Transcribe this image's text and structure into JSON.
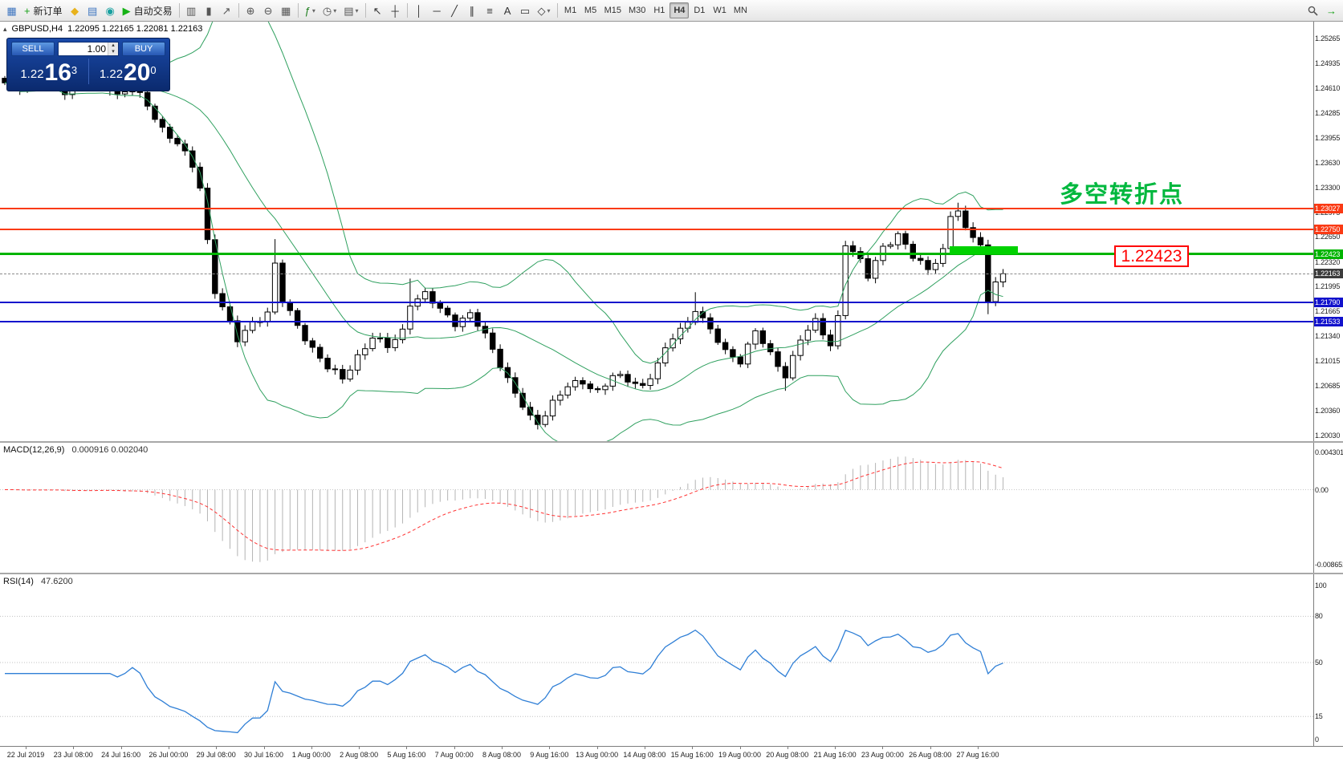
{
  "toolbar": {
    "left": [
      {
        "name": "chart-window-icon",
        "glyph": "▦",
        "color": "#3f76c0"
      },
      {
        "name": "new-order-button",
        "icon": "new-order-icon",
        "glyph": "+",
        "color": "#18a018",
        "label": "新订单"
      },
      {
        "name": "favorites-icon",
        "glyph": "◆",
        "color": "#e8b21c"
      },
      {
        "name": "profiles-icon",
        "glyph": "▤",
        "color": "#3f76c0"
      },
      {
        "name": "community-icon",
        "glyph": "◉",
        "color": "#18a0a0"
      },
      {
        "name": "autotrade-button",
        "icon": "autotrade-play-icon",
        "glyph": "▶",
        "color": "#15b215",
        "label": "自动交易"
      },
      {
        "type": "sep"
      },
      {
        "name": "bar-chart-icon",
        "glyph": "▥",
        "color": "#555555"
      },
      {
        "name": "candlestick-icon",
        "glyph": "▮",
        "color": "#555555"
      },
      {
        "name": "line-chart-icon",
        "glyph": "↗",
        "color": "#555555"
      },
      {
        "type": "sep"
      },
      {
        "name": "zoom-in-icon",
        "glyph": "⊕",
        "color": "#555555"
      },
      {
        "name": "zoom-out-icon",
        "glyph": "⊖",
        "color": "#555555"
      },
      {
        "name": "tile-windows-icon",
        "glyph": "▦",
        "color": "#555555"
      },
      {
        "type": "sep"
      },
      {
        "name": "indicators-icon",
        "glyph": "ƒ",
        "color": "#1d7d1d",
        "dropdown": true
      },
      {
        "name": "periods-icon",
        "glyph": "◷",
        "color": "#555555",
        "dropdown": true
      },
      {
        "name": "templates-icon",
        "glyph": "▤",
        "color": "#555555",
        "dropdown": true
      },
      {
        "type": "sep"
      },
      {
        "name": "cursor-icon",
        "glyph": "↖",
        "color": "#333333"
      },
      {
        "name": "crosshair-icon",
        "glyph": "┼",
        "color": "#333333"
      },
      {
        "type": "sep"
      },
      {
        "name": "vline-icon",
        "glyph": "│",
        "color": "#333333"
      },
      {
        "name": "hline-icon",
        "glyph": "─",
        "color": "#333333"
      },
      {
        "name": "trendline-icon",
        "glyph": "╱",
        "color": "#333333"
      },
      {
        "name": "channel-icon",
        "glyph": "∥",
        "color": "#333333"
      },
      {
        "name": "fibonacci-icon",
        "glyph": "≡",
        "color": "#333333"
      },
      {
        "name": "text-icon",
        "glyph": "A",
        "color": "#333333"
      },
      {
        "name": "label-icon",
        "glyph": "▭",
        "color": "#333333"
      },
      {
        "name": "shapes-icon",
        "glyph": "◇",
        "color": "#333333",
        "dropdown": true
      },
      {
        "type": "sep"
      }
    ],
    "timeframes": [
      "M1",
      "M5",
      "M15",
      "M30",
      "H1",
      "H4",
      "D1",
      "W1",
      "MN"
    ],
    "active_timeframe": "H4",
    "right": [
      {
        "name": "search-icon",
        "svg": "magnifier"
      },
      {
        "name": "forward-icon",
        "glyph": "→",
        "color": "#15a015"
      }
    ]
  },
  "chart": {
    "symbol": "GBPUSD,H4",
    "ohlc": "1.22095 1.22165 1.22081 1.22163"
  },
  "one_click": {
    "sell_label": "SELL",
    "buy_label": "BUY",
    "volume": "1.00",
    "sell_price_prefix": "1.22",
    "sell_price_big": "16",
    "sell_price_sup": "3",
    "buy_price_prefix": "1.22",
    "buy_price_big": "20",
    "buy_price_sup": "0"
  },
  "price_axis": {
    "labels": [
      "1.25265",
      "1.24935",
      "1.24610",
      "1.24285",
      "1.23955",
      "1.23630",
      "1.23300",
      "1.22975",
      "1.22650",
      "1.22320",
      "1.21995",
      "1.21665",
      "1.21340",
      "1.21015",
      "1.20685",
      "1.20360",
      "1.20030"
    ]
  },
  "hlines": [
    {
      "label": "1.23027",
      "price": 1.23027,
      "color": "#fa3a14",
      "width": 2
    },
    {
      "label": "1.22750",
      "price": 1.2275,
      "color": "#fa3a14",
      "width": 2
    },
    {
      "label": "1.22423",
      "price": 1.22423,
      "color": "#00b400",
      "width": 3
    },
    {
      "label": "1.21790",
      "price": 1.2179,
      "color": "#1212cc",
      "width": 2
    },
    {
      "label": "1.21533",
      "price": 1.21533,
      "color": "#1212cc",
      "width": 2
    }
  ],
  "current_price": {
    "label": "1.22163",
    "price": 1.22163,
    "tag_bg": "#3c3c3c"
  },
  "annotations": {
    "turning_point": "多空转折点",
    "turning_point_color": "#00b83e",
    "price_box": "1.22423"
  },
  "zone": {
    "price_top": 1.2253,
    "price_bottom": 1.22423,
    "color": "#00d200"
  },
  "macd": {
    "name": "MACD(12,26,9)",
    "values": "0.000916 0.002040",
    "axis_labels": [
      "0.004301",
      "0.00",
      "-0.008651"
    ],
    "axis_values": [
      0.004301,
      0,
      -0.008651
    ],
    "hist_color": "#b4b4b4",
    "signal_color": "#ff3333"
  },
  "rsi": {
    "name": "RSI(14)",
    "value": "47.6200",
    "axis_labels": [
      "100",
      "80",
      "50",
      "15",
      "0"
    ],
    "axis_values": [
      100,
      80,
      50,
      15,
      0
    ],
    "levels": [
      80,
      50,
      15
    ],
    "line_color": "#2f7fd6"
  },
  "date_axis": [
    "22 Jul 2019",
    "23 Jul 08:00",
    "24 Jul 16:00",
    "26 Jul 00:00",
    "29 Jul 08:00",
    "30 Jul 16:00",
    "1 Aug 00:00",
    "2 Aug 08:00",
    "5 Aug 16:00",
    "7 Aug 00:00",
    "8 Aug 08:00",
    "9 Aug 16:00",
    "13 Aug 00:00",
    "14 Aug 08:00",
    "15 Aug 16:00",
    "19 Aug 00:00",
    "20 Aug 08:00",
    "21 Aug 16:00",
    "23 Aug 00:00",
    "26 Aug 08:00",
    "27 Aug 16:00"
  ],
  "chart_data": {
    "type": "candlestick",
    "symbol": "GBPUSD",
    "timeframe": "H4",
    "candle_count": 134,
    "price_range": [
      1.2003,
      1.25265
    ],
    "band_color": "#2fa05f",
    "close_anchors": [
      [
        0,
        1.2468
      ],
      [
        3,
        1.2462
      ],
      [
        5,
        1.2471
      ],
      [
        8,
        1.2458
      ],
      [
        11,
        1.2465
      ],
      [
        13,
        1.2472
      ],
      [
        15,
        1.2452
      ],
      [
        17,
        1.2462
      ],
      [
        19,
        1.2438
      ],
      [
        21,
        1.2408
      ],
      [
        23,
        1.2388
      ],
      [
        25,
        1.2358
      ],
      [
        26,
        1.233
      ],
      [
        27,
        1.226
      ],
      [
        28,
        1.2195
      ],
      [
        30,
        1.215
      ],
      [
        31,
        1.2128
      ],
      [
        33,
        1.2152
      ],
      [
        35,
        1.2165
      ],
      [
        36,
        1.2228
      ],
      [
        37,
        1.218
      ],
      [
        39,
        1.2148
      ],
      [
        41,
        1.2118
      ],
      [
        43,
        1.2092
      ],
      [
        45,
        1.2078
      ],
      [
        47,
        1.2108
      ],
      [
        49,
        1.2132
      ],
      [
        51,
        1.212
      ],
      [
        53,
        1.2142
      ],
      [
        54,
        1.2178
      ],
      [
        56,
        1.2188
      ],
      [
        58,
        1.217
      ],
      [
        60,
        1.2152
      ],
      [
        62,
        1.2162
      ],
      [
        64,
        1.2135
      ],
      [
        66,
        1.2098
      ],
      [
        68,
        1.2058
      ],
      [
        70,
        1.2025
      ],
      [
        71,
        1.2018
      ],
      [
        73,
        1.2048
      ],
      [
        75,
        1.2068
      ],
      [
        77,
        1.2072
      ],
      [
        79,
        1.2062
      ],
      [
        81,
        1.2082
      ],
      [
        83,
        1.2075
      ],
      [
        85,
        1.2068
      ],
      [
        87,
        1.2098
      ],
      [
        89,
        1.2132
      ],
      [
        91,
        1.2152
      ],
      [
        92,
        1.2172
      ],
      [
        94,
        1.2142
      ],
      [
        96,
        1.2112
      ],
      [
        98,
        1.2102
      ],
      [
        100,
        1.2142
      ],
      [
        102,
        1.2108
      ],
      [
        104,
        1.2082
      ],
      [
        106,
        1.2132
      ],
      [
        108,
        1.2152
      ],
      [
        110,
        1.2122
      ],
      [
        111,
        1.216
      ],
      [
        112,
        1.2258
      ],
      [
        114,
        1.2232
      ],
      [
        115,
        1.2212
      ],
      [
        117,
        1.2252
      ],
      [
        119,
        1.2268
      ],
      [
        121,
        1.2238
      ],
      [
        123,
        1.2222
      ],
      [
        125,
        1.2248
      ],
      [
        126,
        1.2292
      ],
      [
        127,
        1.23
      ],
      [
        128,
        1.2272
      ],
      [
        130,
        1.2258
      ],
      [
        131,
        1.2178
      ],
      [
        132,
        1.2208
      ],
      [
        133,
        1.22163
      ]
    ],
    "wicks": [
      [
        5,
        "h",
        1.2478
      ],
      [
        13,
        "h",
        1.2479
      ],
      [
        36,
        "h",
        1.2262
      ],
      [
        54,
        "h",
        1.221
      ],
      [
        71,
        "l",
        1.2012
      ],
      [
        92,
        "h",
        1.2192
      ],
      [
        104,
        "l",
        1.2062
      ],
      [
        127,
        "h",
        1.231
      ],
      [
        131,
        "l",
        1.2163
      ]
    ],
    "indicators": [
      "Bollinger Bands",
      "MACD(12,26,9)",
      "RSI(14)"
    ]
  }
}
